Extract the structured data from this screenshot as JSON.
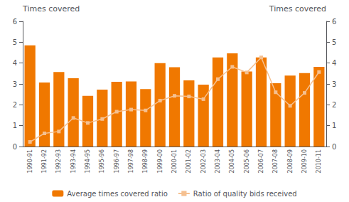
{
  "chart_data": {
    "type": "bar",
    "categories": [
      "1990-91",
      "1991-92",
      "1992-93",
      "1993-94",
      "1994-95",
      "1995-96",
      "1996-97",
      "1997-98",
      "1998-99",
      "1999-00",
      "2000-01",
      "2001-02",
      "2002-03",
      "2003-04",
      "2004-05",
      "2005-06",
      "2006-07",
      "2007-08",
      "2008-09",
      "2009-10",
      "2010-11"
    ],
    "series": [
      {
        "name": "Average times covered ratio",
        "type": "bar",
        "color": "#F07800",
        "values": [
          4.85,
          3.07,
          3.57,
          3.27,
          2.43,
          2.73,
          3.1,
          3.12,
          2.75,
          4.0,
          3.8,
          3.17,
          2.97,
          4.27,
          4.47,
          3.6,
          4.27,
          3.03,
          3.4,
          3.52,
          3.82
        ]
      },
      {
        "name": "Ratio of quality bids received",
        "type": "line",
        "color": "#F5C090",
        "marker": "square",
        "axis": "y2",
        "values": [
          0.22,
          0.63,
          0.72,
          1.37,
          1.13,
          1.32,
          1.67,
          1.77,
          1.73,
          2.2,
          2.43,
          2.4,
          2.27,
          3.23,
          3.82,
          3.55,
          4.27,
          2.6,
          1.95,
          2.57,
          3.57
        ]
      }
    ],
    "ylabel": "Times covered",
    "y2label": "Times covered",
    "ylim": [
      0,
      6
    ],
    "yticks": [
      0,
      1,
      2,
      3,
      4,
      5,
      6
    ],
    "y2lim": [
      0,
      6
    ],
    "y2ticks": [
      0,
      1,
      2,
      3,
      4,
      5,
      6
    ],
    "grid": false,
    "legend": "bottom"
  }
}
